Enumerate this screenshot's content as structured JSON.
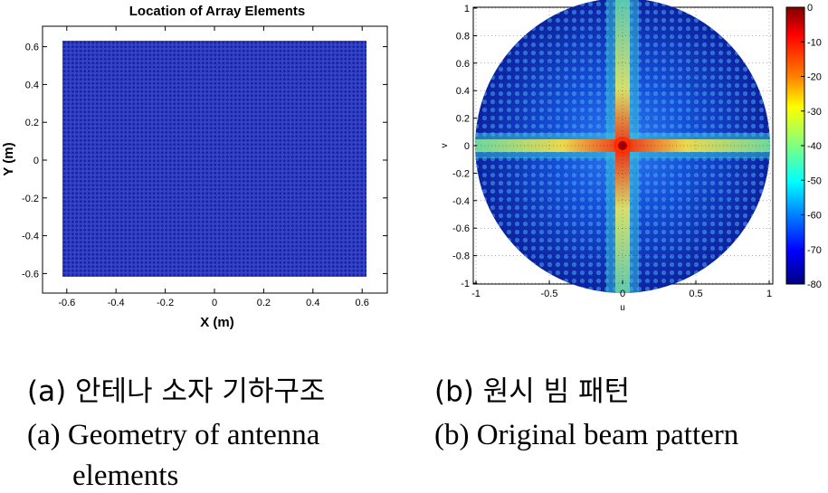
{
  "chart_data": [
    {
      "type": "scatter",
      "title": "Location of Array Elements",
      "xlabel": "X (m)",
      "ylabel": "Y (m)",
      "xlim": [
        -0.7,
        0.7
      ],
      "ylim": [
        -0.7,
        0.7
      ],
      "x_range": [
        -0.62,
        0.62
      ],
      "y_range": [
        -0.62,
        0.62
      ],
      "x_ticks": [
        "-0.6",
        "-0.4",
        "-0.2",
        "0",
        "0.2",
        "0.4",
        "0.6"
      ],
      "y_ticks": [
        "0.6",
        "0.4",
        "0.2",
        "0",
        "-0.2",
        "-0.4",
        "-0.6"
      ],
      "color": "#2233cc",
      "grid": false
    },
    {
      "type": "heatmap",
      "xlabel": "u",
      "ylabel": "v",
      "xlim": [
        -1,
        1
      ],
      "ylim": [
        -1,
        1
      ],
      "x_ticks": [
        "-1",
        "-0.5",
        "0",
        "0.5",
        "1"
      ],
      "y_ticks": [
        "1",
        "0.8",
        "0.6",
        "0.4",
        "0.2",
        "0",
        "-0.2",
        "-0.4",
        "-0.6",
        "-0.8",
        "-1"
      ],
      "colorbar_ticks": [
        "0",
        "-10",
        "-20",
        "-30",
        "-40",
        "-50",
        "-60",
        "-70",
        "-80"
      ],
      "clim": [
        -80,
        0
      ],
      "grid": true
    }
  ],
  "captions": {
    "a_ko": "(a) 안테나 소자 기하구조",
    "b_ko": "(b) 원시 빔 패턴",
    "a_en_line1": "(a) Geometry of antenna",
    "a_en_line2": "elements",
    "b_en": "(b) Original beam pattern"
  }
}
